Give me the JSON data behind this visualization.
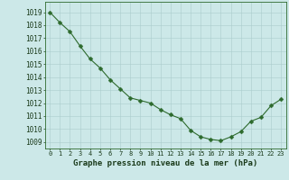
{
  "x": [
    0,
    1,
    2,
    3,
    4,
    5,
    6,
    7,
    8,
    9,
    10,
    11,
    12,
    13,
    14,
    15,
    16,
    17,
    18,
    19,
    20,
    21,
    22,
    23
  ],
  "y": [
    1019.0,
    1018.2,
    1017.5,
    1016.4,
    1015.4,
    1014.7,
    1013.8,
    1013.1,
    1012.4,
    1012.2,
    1012.0,
    1011.5,
    1011.1,
    1010.8,
    1009.9,
    1009.4,
    1009.2,
    1009.1,
    1009.4,
    1009.8,
    1010.6,
    1010.9,
    1011.8,
    1012.3
  ],
  "line_color": "#2d6a2d",
  "marker": "D",
  "marker_size": 2.5,
  "bg_color": "#cce8e8",
  "grid_color": "#aacccc",
  "xlabel": "Graphe pression niveau de la mer (hPa)",
  "xlabel_color": "#1a3a1a",
  "xlabel_fontsize": 6.5,
  "ylabel_ticks": [
    1009,
    1010,
    1011,
    1012,
    1013,
    1014,
    1015,
    1016,
    1017,
    1018,
    1019
  ],
  "ylim": [
    1008.5,
    1019.8
  ],
  "xlim": [
    -0.5,
    23.5
  ],
  "ytick_fontsize": 5.5,
  "xtick_fontsize": 5.0,
  "tick_color": "#1a3a1a",
  "spine_color": "#2d6a2d",
  "linewidth": 0.8
}
